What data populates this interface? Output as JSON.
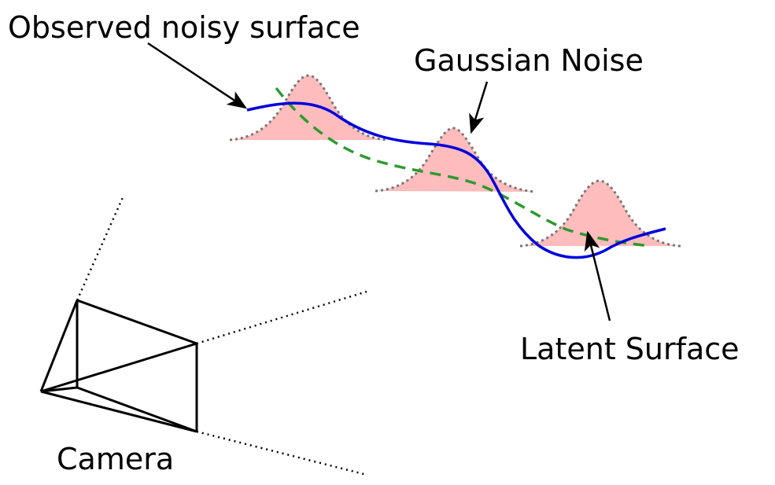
{
  "labels": {
    "observed": "Observed noisy surface",
    "gaussian": "Gaussian Noise",
    "latent": "Latent Surface",
    "camera": "Camera"
  },
  "colors": {
    "observed_curve": "#0000dd",
    "latent_curve": "#2e9a2e",
    "noise_fill": "#ffbcbc",
    "noise_outline": "#777777",
    "lines": "#000000"
  }
}
